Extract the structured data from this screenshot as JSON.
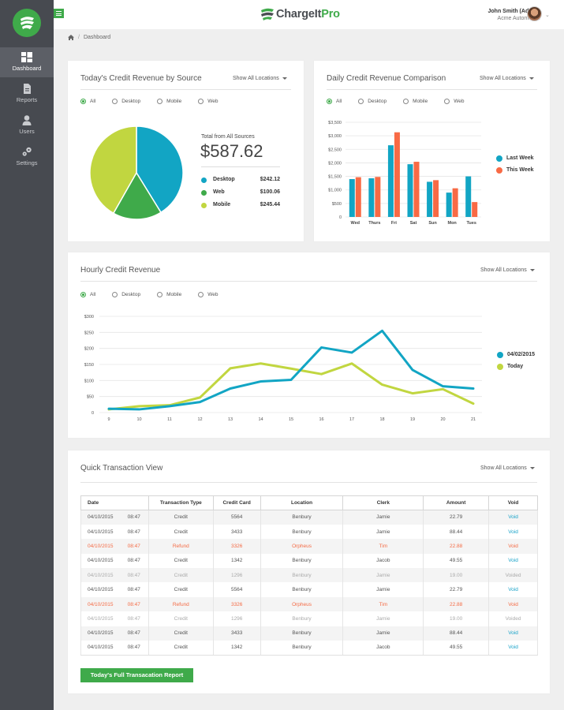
{
  "brand": {
    "name_main": "ChargeIt",
    "name_accent": "Pro"
  },
  "user": {
    "name": "John Smith (Admin)",
    "org": "Acme Automotive"
  },
  "sidebar": {
    "items": [
      {
        "label": "Dashboard",
        "icon": "dashboard-icon"
      },
      {
        "label": "Reports",
        "icon": "document-icon"
      },
      {
        "label": "Users",
        "icon": "user-icon"
      },
      {
        "label": "Settings",
        "icon": "gears-icon"
      }
    ]
  },
  "breadcrumb": {
    "current": "Dashboard"
  },
  "location_select": "Show All Locations",
  "radio_options": [
    "All",
    "Desktop",
    "Mobile",
    "Web"
  ],
  "colors": {
    "teal": "#12a5c4",
    "green": "#3faa4a",
    "lime": "#c1d640",
    "orange": "#f86a45"
  },
  "pie_card": {
    "title": "Today's Credit Revenue by Source",
    "total_label": "Total from All Sources",
    "total_value": "$587.62",
    "sources": [
      {
        "name": "Desktop",
        "amount": "$242.12",
        "value": 242.12,
        "color": "#12a5c4"
      },
      {
        "name": "Web",
        "amount": "$100.06",
        "value": 100.06,
        "color": "#3faa4a"
      },
      {
        "name": "Mobile",
        "amount": "$245.44",
        "value": 245.44,
        "color": "#c1d640"
      }
    ]
  },
  "chart_data": [
    {
      "type": "pie",
      "title": "Today's Credit Revenue by Source",
      "labels": [
        "Desktop",
        "Web",
        "Mobile"
      ],
      "values": [
        242.12,
        100.06,
        245.44
      ]
    },
    {
      "type": "bar",
      "title": "Daily Credit Revenue Comparison",
      "categories": [
        "Wed",
        "Thurs",
        "Fri",
        "Sat",
        "Sun",
        "Mon",
        "Tues"
      ],
      "series": [
        {
          "name": "Last Week",
          "color": "#12a5c4",
          "values": [
            1400,
            1430,
            2650,
            1950,
            1300,
            900,
            1500
          ]
        },
        {
          "name": "This Week",
          "color": "#f86a45",
          "values": [
            1470,
            1480,
            3130,
            2040,
            1360,
            1060,
            550
          ]
        }
      ],
      "yticks": [
        "$3,500",
        "$3,000",
        "$2,500",
        "$2,000",
        "$1,500",
        "$1,000",
        "$500",
        "0"
      ],
      "ylim": [
        0,
        3500
      ]
    },
    {
      "type": "line",
      "title": "Hourly Credit Revenue",
      "x": [
        9,
        10,
        11,
        12,
        13,
        14,
        15,
        16,
        17,
        18,
        19,
        20,
        21
      ],
      "series": [
        {
          "name": "04/02/2015",
          "color": "#12a5c4",
          "values": [
            12,
            10,
            20,
            33,
            75,
            97,
            102,
            203,
            187,
            255,
            133,
            82,
            75
          ]
        },
        {
          "name": "Today",
          "color": "#c1d640",
          "values": [
            10,
            20,
            23,
            47,
            138,
            153,
            137,
            120,
            153,
            87,
            60,
            73,
            28
          ]
        }
      ],
      "yticks": [
        "$300",
        "$250",
        "$200",
        "$150",
        "$100",
        "$50",
        "0"
      ],
      "ylim": [
        0,
        300
      ]
    }
  ],
  "bar_card": {
    "title": "Daily Credit Revenue Comparison"
  },
  "line_card": {
    "title": "Hourly Credit Revenue"
  },
  "tx_card": {
    "title": "Quick Transaction View",
    "button": "Today's Full Transacation Report",
    "columns": [
      "Date",
      "Transaction Type",
      "Credit Card",
      "Location",
      "Clerk",
      "Amount",
      "Void"
    ],
    "rows": [
      {
        "date": "04/10/2015",
        "time": "08:47",
        "type": "Credit",
        "card": "5564",
        "location": "Benbury",
        "clerk": "Jamie",
        "amount": "22.79",
        "void": "Void",
        "status": "normal"
      },
      {
        "date": "04/10/2015",
        "time": "08:47",
        "type": "Credit",
        "card": "3433",
        "location": "Benbury",
        "clerk": "Jamie",
        "amount": "88.44",
        "void": "Void",
        "status": "normal"
      },
      {
        "date": "04/10/2015",
        "time": "08:47",
        "type": "Refund",
        "card": "3326",
        "location": "Orpheus",
        "clerk": "Tim",
        "amount": "22.88",
        "void": "Void",
        "status": "refund"
      },
      {
        "date": "04/10/2015",
        "time": "08:47",
        "type": "Credit",
        "card": "1342",
        "location": "Benbury",
        "clerk": "Jacob",
        "amount": "49.55",
        "void": "Void",
        "status": "normal"
      },
      {
        "date": "04/10/2015",
        "time": "08:47",
        "type": "Credit",
        "card": "1296",
        "location": "Benbury",
        "clerk": "Jamie",
        "amount": "19.00",
        "void": "Voided",
        "status": "voided"
      },
      {
        "date": "04/10/2015",
        "time": "08:47",
        "type": "Credit",
        "card": "5564",
        "location": "Benbury",
        "clerk": "Jamie",
        "amount": "22.79",
        "void": "Void",
        "status": "normal"
      },
      {
        "date": "04/10/2015",
        "time": "08:47",
        "type": "Refund",
        "card": "3326",
        "location": "Orpheus",
        "clerk": "Tim",
        "amount": "22.88",
        "void": "Void",
        "status": "refund"
      },
      {
        "date": "04/10/2015",
        "time": "08:47",
        "type": "Credit",
        "card": "1296",
        "location": "Benbury",
        "clerk": "Jamie",
        "amount": "19.00",
        "void": "Voided",
        "status": "voided"
      },
      {
        "date": "04/10/2015",
        "time": "08:47",
        "type": "Credit",
        "card": "3433",
        "location": "Benbury",
        "clerk": "Jamie",
        "amount": "88.44",
        "void": "Void",
        "status": "normal"
      },
      {
        "date": "04/10/2015",
        "time": "08:47",
        "type": "Credit",
        "card": "1342",
        "location": "Benbury",
        "clerk": "Jacob",
        "amount": "49.55",
        "void": "Void",
        "status": "normal"
      }
    ]
  }
}
